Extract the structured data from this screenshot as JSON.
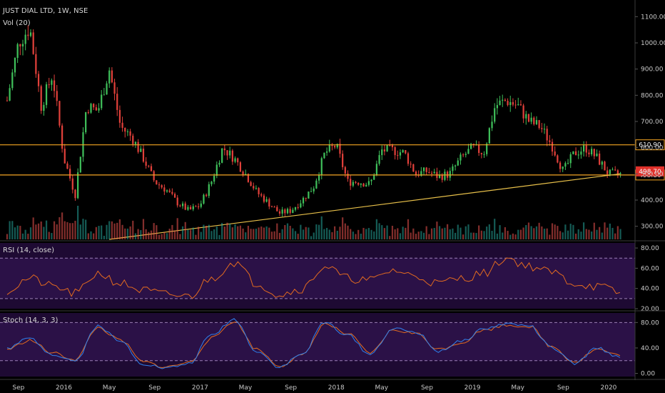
{
  "header": {
    "symbol_title": "JUST DIAL LTD, 1W, NSE",
    "volume_label": "Vol (20)"
  },
  "colors": {
    "background": "#000000",
    "up": "#26a69a",
    "down": "#ef5350",
    "candle_up": "#3fbf5a",
    "candle_down": "#e0403a",
    "level_line": "#f5a623",
    "trend_line": "#e8c04a",
    "indicator_bg": "#1e0a33",
    "rsi_line": "#e36b1f",
    "stoch_k": "#2f80ed",
    "stoch_d": "#e36b1f",
    "band_line": "#9a7fb5"
  },
  "chart_data": [
    {
      "type": "candlestick",
      "panel": "price",
      "ylim": [
        250,
        1150
      ],
      "y_ticks": [
        "1100.00",
        "1000.00",
        "900.00",
        "800.00",
        "700.00",
        "600.00",
        "500.00",
        "400.00",
        "300.00"
      ],
      "x_ticks": [
        "Sep",
        "2016",
        "May",
        "Sep",
        "2017",
        "May",
        "Sep",
        "2018",
        "May",
        "Sep",
        "2019",
        "May",
        "Sep",
        "2020"
      ],
      "horizontal_levels": [
        {
          "value": 610.9,
          "label": "610.90"
        },
        {
          "value": 495.8,
          "label": "495.80"
        }
      ],
      "last_price": {
        "value": 498.7,
        "label": "498.70"
      },
      "trend_line": {
        "from": {
          "date": "2016-05",
          "value": 250
        },
        "to": {
          "date": "2020-02",
          "value": 500
        }
      },
      "close_path": [
        [
          "2015-08",
          780
        ],
        [
          "2015-09",
          1000
        ],
        [
          "2015-10",
          1060
        ],
        [
          "2015-11",
          760
        ],
        [
          "2015-12",
          880
        ],
        [
          "2016-01",
          560
        ],
        [
          "2016-02",
          420
        ],
        [
          "2016-03",
          760
        ],
        [
          "2016-04",
          740
        ],
        [
          "2016-05",
          900
        ],
        [
          "2016-06",
          680
        ],
        [
          "2016-07",
          640
        ],
        [
          "2016-08",
          560
        ],
        [
          "2016-09",
          470
        ],
        [
          "2016-10",
          440
        ],
        [
          "2016-11",
          390
        ],
        [
          "2016-12",
          360
        ],
        [
          "2017-01",
          380
        ],
        [
          "2017-02",
          470
        ],
        [
          "2017-03",
          600
        ],
        [
          "2017-04",
          560
        ],
        [
          "2017-05",
          500
        ],
        [
          "2017-06",
          430
        ],
        [
          "2017-07",
          390
        ],
        [
          "2017-08",
          350
        ],
        [
          "2017-09",
          360
        ],
        [
          "2017-10",
          400
        ],
        [
          "2017-11",
          450
        ],
        [
          "2017-12",
          580
        ],
        [
          "2018-01",
          610
        ],
        [
          "2018-02",
          470
        ],
        [
          "2018-03",
          470
        ],
        [
          "2018-04",
          460
        ],
        [
          "2018-05",
          590
        ],
        [
          "2018-06",
          590
        ],
        [
          "2018-07",
          580
        ],
        [
          "2018-08",
          500
        ],
        [
          "2018-09",
          510
        ],
        [
          "2018-10",
          490
        ],
        [
          "2018-11",
          500
        ],
        [
          "2018-12",
          560
        ],
        [
          "2019-01",
          600
        ],
        [
          "2019-02",
          580
        ],
        [
          "2019-03",
          760
        ],
        [
          "2019-04",
          780
        ],
        [
          "2019-05",
          760
        ],
        [
          "2019-06",
          700
        ],
        [
          "2019-07",
          680
        ],
        [
          "2019-08",
          610
        ],
        [
          "2019-09",
          510
        ],
        [
          "2019-10",
          580
        ],
        [
          "2019-11",
          600
        ],
        [
          "2019-12",
          560
        ],
        [
          "2020-01",
          500
        ],
        [
          "2020-02",
          498.7
        ]
      ]
    },
    {
      "type": "bar",
      "panel": "volume",
      "series_name": "Vol (20)"
    },
    {
      "type": "line",
      "panel": "rsi",
      "title": "RSI (14, close)",
      "ylim": [
        20,
        85
      ],
      "y_ticks": [
        "80.00",
        "60.00",
        "40.00",
        "20.00"
      ],
      "bands": [
        70,
        30
      ],
      "x": [
        "2015-08",
        "2015-10",
        "2015-12",
        "2016-02",
        "2016-04",
        "2016-06",
        "2016-08",
        "2016-10",
        "2016-12",
        "2017-02",
        "2017-04",
        "2017-06",
        "2017-08",
        "2017-10",
        "2017-12",
        "2018-02",
        "2018-04",
        "2018-06",
        "2018-08",
        "2018-10",
        "2018-12",
        "2019-02",
        "2019-04",
        "2019-06",
        "2019-08",
        "2019-10",
        "2019-12",
        "2020-02"
      ],
      "values": [
        38,
        50,
        42,
        35,
        55,
        45,
        38,
        34,
        32,
        50,
        66,
        45,
        34,
        40,
        62,
        50,
        48,
        58,
        52,
        45,
        50,
        55,
        70,
        62,
        56,
        45,
        42,
        36
      ]
    },
    {
      "type": "line",
      "panel": "stoch",
      "title": "Stoch (14, 3, 3)",
      "ylim": [
        -5,
        95
      ],
      "y_ticks": [
        "80.00",
        "40.00",
        "0.00"
      ],
      "bands": [
        80,
        20
      ],
      "x": [
        "2015-08",
        "2015-10",
        "2015-12",
        "2016-02",
        "2016-04",
        "2016-06",
        "2016-08",
        "2016-10",
        "2016-12",
        "2017-02",
        "2017-04",
        "2017-06",
        "2017-08",
        "2017-10",
        "2017-12",
        "2018-02",
        "2018-04",
        "2018-06",
        "2018-08",
        "2018-10",
        "2018-12",
        "2019-02",
        "2019-04",
        "2019-06",
        "2019-08",
        "2019-10",
        "2019-12",
        "2020-02"
      ],
      "series": [
        {
          "name": "%K",
          "values": [
            40,
            55,
            30,
            20,
            75,
            50,
            15,
            8,
            15,
            60,
            85,
            35,
            10,
            30,
            80,
            60,
            30,
            70,
            65,
            35,
            50,
            70,
            78,
            75,
            40,
            15,
            40,
            25
          ]
        },
        {
          "name": "%D",
          "values": [
            38,
            52,
            32,
            22,
            72,
            52,
            18,
            10,
            17,
            55,
            82,
            38,
            12,
            28,
            78,
            62,
            32,
            68,
            63,
            38,
            48,
            68,
            76,
            74,
            42,
            18,
            38,
            28
          ]
        }
      ]
    }
  ]
}
